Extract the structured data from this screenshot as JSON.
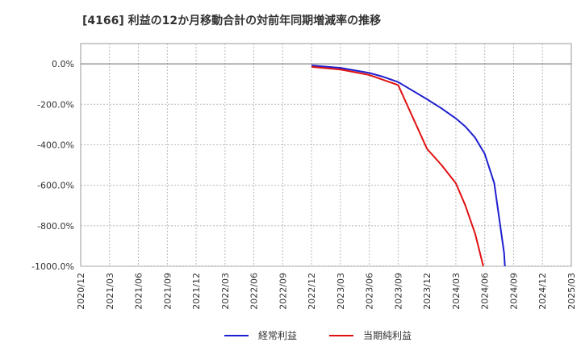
{
  "chart_data": {
    "type": "line",
    "title": "[4166]  利益の12か月移動合計の対前年同期増減率の推移",
    "xlabel": "",
    "ylabel": "",
    "ylim": [
      -1000,
      100
    ],
    "yticks": [
      0,
      -200,
      -400,
      -600,
      -800,
      -1000
    ],
    "ytick_labels": [
      "0.0%",
      "-200.0%",
      "-400.0%",
      "-600.0%",
      "-800.0%",
      "-1000.0%"
    ],
    "xticks": [
      "2020/12",
      "2021/03",
      "2021/06",
      "2021/09",
      "2021/12",
      "2022/03",
      "2022/06",
      "2022/09",
      "2022/12",
      "2023/03",
      "2023/06",
      "2023/09",
      "2023/12",
      "2024/03",
      "2024/06",
      "2024/09",
      "2024/12",
      "2025/03"
    ],
    "grid": true,
    "legend_position": "bottom-center",
    "series": [
      {
        "name": "経常利益",
        "color": "#1f1fcf",
        "points": [
          {
            "x": 8.0,
            "y": -8
          },
          {
            "x": 9.0,
            "y": -20
          },
          {
            "x": 10.0,
            "y": -45
          },
          {
            "x": 10.5,
            "y": -65
          },
          {
            "x": 11.0,
            "y": -90
          },
          {
            "x": 12.0,
            "y": -175
          },
          {
            "x": 12.5,
            "y": -220
          },
          {
            "x": 13.0,
            "y": -270
          },
          {
            "x": 13.33,
            "y": -310
          },
          {
            "x": 13.67,
            "y": -365
          },
          {
            "x": 14.0,
            "y": -445
          },
          {
            "x": 14.33,
            "y": -590
          },
          {
            "x": 14.67,
            "y": -935
          },
          {
            "x": 14.7,
            "y": -1000
          }
        ]
      },
      {
        "name": "当期純利益",
        "color": "#e01010",
        "points": [
          {
            "x": 8.0,
            "y": -15
          },
          {
            "x": 9.0,
            "y": -28
          },
          {
            "x": 10.0,
            "y": -55
          },
          {
            "x": 11.0,
            "y": -105
          },
          {
            "x": 12.0,
            "y": -420
          },
          {
            "x": 12.5,
            "y": -500
          },
          {
            "x": 13.0,
            "y": -590
          },
          {
            "x": 13.33,
            "y": -700
          },
          {
            "x": 13.67,
            "y": -840
          },
          {
            "x": 13.95,
            "y": -1000
          }
        ]
      }
    ]
  }
}
